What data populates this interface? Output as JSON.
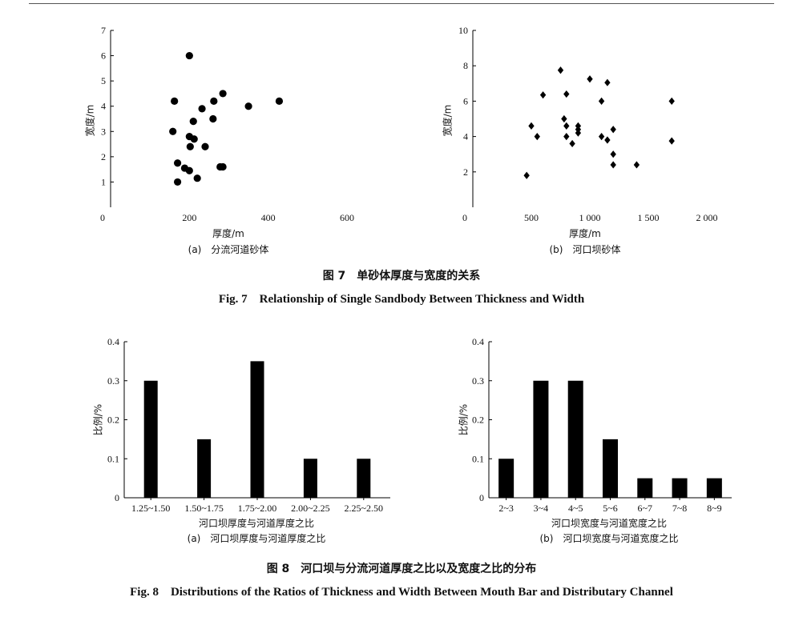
{
  "figure7": {
    "caption_cn": "图 7　单砂体厚度与宽度的关系",
    "caption_en": "Fig. 7　Relationship of Single Sandbody Between Thickness and Width"
  },
  "figure8": {
    "caption_cn": "图 8　河口坝与分流河道厚度之比以及宽度之比的分布",
    "caption_en": "Fig. 8　Distributions of the Ratios of Thickness and Width Between Mouth Bar and Distributary Channel"
  },
  "colors": {
    "marks": "#000000",
    "axis": "#000000"
  },
  "chart_data": [
    {
      "id": "fig7a",
      "type": "scatter",
      "marker": "circle",
      "subtitle": "(a)　分流河道砂体",
      "xlabel": "厚度/m",
      "ylabel": "宽度/m",
      "xlim": [
        0,
        600
      ],
      "ylim": [
        0,
        7
      ],
      "xticks": [
        "0",
        "200",
        "400",
        "600"
      ],
      "yticks": [
        "1",
        "2",
        "3",
        "4",
        "5",
        "6",
        "7"
      ],
      "x": [
        200,
        162,
        285,
        262,
        232,
        350,
        428,
        210,
        260,
        158,
        200,
        212,
        202,
        240,
        170,
        188,
        200,
        278,
        285,
        220,
        170
      ],
      "y": [
        6.0,
        4.2,
        4.5,
        4.2,
        3.9,
        4.0,
        4.2,
        3.4,
        3.5,
        3.0,
        2.8,
        2.7,
        2.4,
        2.4,
        1.75,
        1.55,
        1.45,
        1.6,
        1.6,
        1.15,
        1.0
      ]
    },
    {
      "id": "fig7b",
      "type": "scatter",
      "marker": "diamond",
      "subtitle": "(b)　河口坝砂体",
      "xlabel": "厚度/m",
      "ylabel": "宽度/m",
      "xlim": [
        0,
        2000
      ],
      "ylim": [
        0,
        10
      ],
      "xticks": [
        "0",
        "500",
        "1 000",
        "1 500",
        "2 000"
      ],
      "yticks": [
        "2",
        "4",
        "6",
        "8",
        "10"
      ],
      "x": [
        750,
        1000,
        1150,
        600,
        800,
        1100,
        1700,
        780,
        500,
        800,
        900,
        900,
        900,
        1200,
        550,
        800,
        850,
        1100,
        1150,
        1700,
        1200,
        1200,
        1400,
        460
      ],
      "y": [
        7.75,
        7.25,
        7.05,
        6.35,
        6.4,
        6.0,
        6.0,
        5.0,
        4.6,
        4.6,
        4.6,
        4.4,
        4.2,
        4.4,
        4.0,
        4.0,
        3.6,
        4.0,
        3.8,
        3.75,
        3.0,
        2.4,
        2.4,
        1.8
      ]
    },
    {
      "id": "fig8a",
      "type": "bar",
      "subtitle": "(a)　河口坝厚度与河道厚度之比",
      "xlabel": "河口坝厚度与河道厚度之比",
      "ylabel": "比例/%",
      "ylim": [
        0,
        0.4
      ],
      "yticks": [
        "0",
        "0.1",
        "0.2",
        "0.3",
        "0.4"
      ],
      "categories": [
        "1.25~1.50",
        "1.50~1.75",
        "1.75~2.00",
        "2.00~2.25",
        "2.25~2.50"
      ],
      "values": [
        0.3,
        0.15,
        0.35,
        0.1,
        0.1
      ]
    },
    {
      "id": "fig8b",
      "type": "bar",
      "subtitle": "(b)　河口坝宽度与河道宽度之比",
      "xlabel": "河口坝宽度与河道宽度之比",
      "ylabel": "比例/%",
      "ylim": [
        0,
        0.4
      ],
      "yticks": [
        "0",
        "0.1",
        "0.2",
        "0.3",
        "0.4"
      ],
      "categories": [
        "2~3",
        "3~4",
        "4~5",
        "5~6",
        "6~7",
        "7~8",
        "8~9"
      ],
      "values": [
        0.1,
        0.3,
        0.3,
        0.15,
        0.05,
        0.05,
        0.05
      ]
    }
  ]
}
